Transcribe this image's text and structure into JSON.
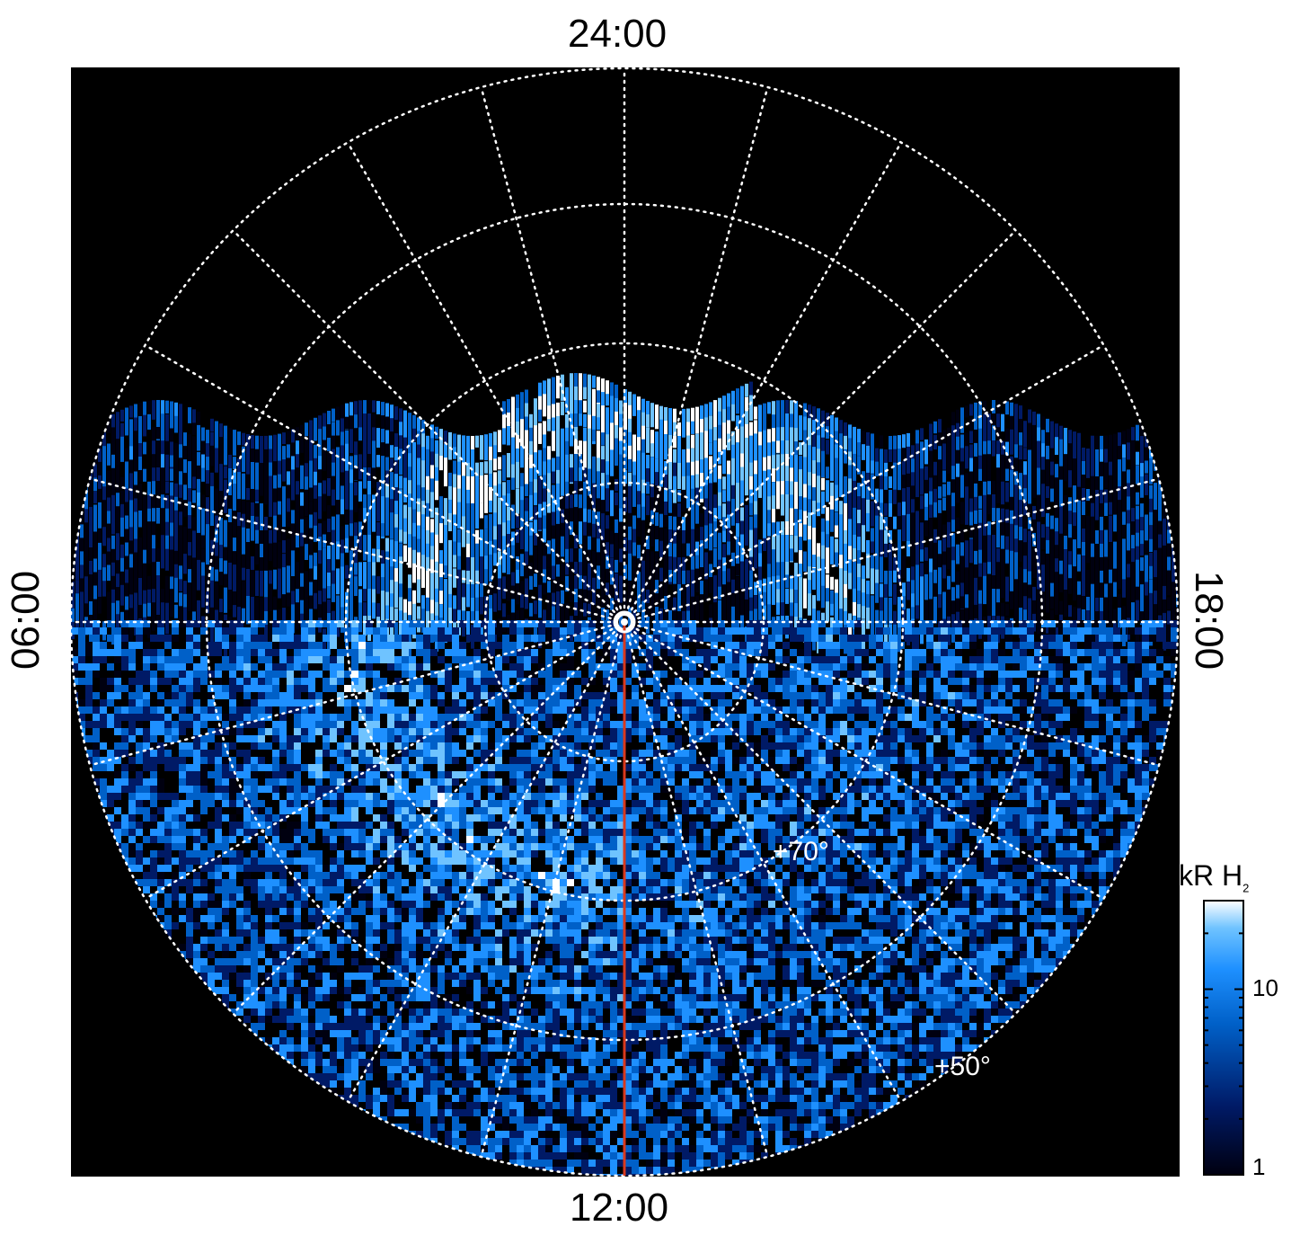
{
  "plot": {
    "local_time_labels": {
      "top": "24:00",
      "bottom": "12:00",
      "left": "06:00",
      "right": "18:00"
    },
    "latitude_labels": [
      "+70°",
      "+50°"
    ],
    "colors": {
      "background": "#000000",
      "grid": "#ffffff",
      "meridian_marker": "#d9391d"
    }
  },
  "colorbar": {
    "title": "kR H",
    "title_subscript": "2",
    "tick_labels": [
      "10",
      "1"
    ],
    "scale": "log",
    "range": [
      1,
      30
    ],
    "colors": [
      "#000010",
      "#001a66",
      "#0060c8",
      "#1e90ff",
      "#6fc3ff",
      "#ffffff"
    ]
  }
}
